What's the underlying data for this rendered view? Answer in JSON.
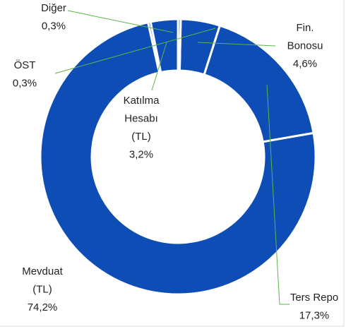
{
  "chart_data": {
    "type": "donut",
    "categories": [
      [
        "Fin.",
        "Bonosu"
      ],
      [
        "Ters Repo"
      ],
      [
        "Mevduat",
        "(TL)"
      ],
      [
        "ÖST"
      ],
      [
        "Katılma",
        "Hesabı",
        "(TL)"
      ],
      [
        "Diğer"
      ]
    ],
    "values": [
      4.6,
      17.3,
      74.2,
      0.3,
      3.2,
      0.3
    ],
    "value_labels": [
      "4,6%",
      "17,3%",
      "74,2%",
      "0,3%",
      "3,2%",
      "0,3%"
    ],
    "color": "#0e4db5",
    "leader_color": "#5bb548"
  }
}
